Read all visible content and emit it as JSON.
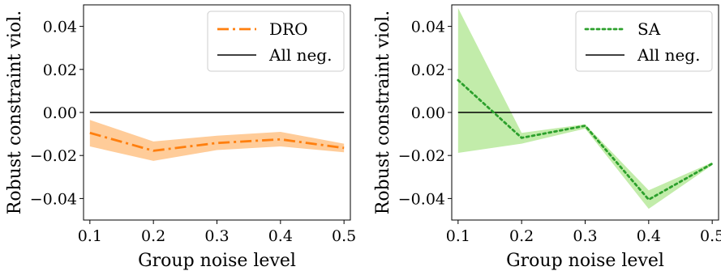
{
  "chart_data": [
    {
      "type": "line",
      "title": "",
      "xlabel": "Group noise level",
      "ylabel": "Robust constraint viol.",
      "x": [
        0.1,
        0.2,
        0.3,
        0.4,
        0.5
      ],
      "xlim": [
        0.09,
        0.51
      ],
      "ylim": [
        -0.05,
        0.05
      ],
      "xticks": [
        "0.1",
        "0.2",
        "0.3",
        "0.4",
        "0.5"
      ],
      "yticks": [
        "−0.04",
        "−0.02",
        "0.00",
        "0.02",
        "0.04"
      ],
      "ytick_values": [
        -0.04,
        -0.02,
        0.0,
        0.02,
        0.04
      ],
      "grid": false,
      "legend_position": "top-right",
      "series": [
        {
          "name": "DRO",
          "values": [
            -0.0095,
            -0.0178,
            -0.0142,
            -0.0125,
            -0.0165
          ],
          "band_lower": [
            -0.0158,
            -0.0225,
            -0.0175,
            -0.0158,
            -0.0185
          ],
          "band_upper": [
            -0.0035,
            -0.0135,
            -0.0108,
            -0.009,
            -0.0145
          ],
          "color": "#ff7f0e",
          "band_color": "#ffcc99",
          "style": "dash-dot"
        },
        {
          "name": "All neg.",
          "values": [
            0.0,
            0.0,
            0.0,
            0.0,
            0.0
          ],
          "color": "#000000",
          "style": "solid"
        }
      ]
    },
    {
      "type": "line",
      "title": "",
      "xlabel": "Group noise level",
      "ylabel": "Robust constraint viol.",
      "x": [
        0.1,
        0.2,
        0.3,
        0.4,
        0.5
      ],
      "xlim": [
        0.09,
        0.51
      ],
      "ylim": [
        -0.05,
        0.05
      ],
      "xticks": [
        "0.1",
        "0.2",
        "0.3",
        "0.4",
        "0.5"
      ],
      "yticks": [
        "−0.04",
        "−0.02",
        "0.00",
        "0.02",
        "0.04"
      ],
      "ytick_values": [
        -0.04,
        -0.02,
        0.0,
        0.02,
        0.04
      ],
      "grid": false,
      "legend_position": "top-right",
      "series": [
        {
          "name": "SA",
          "values": [
            0.015,
            -0.0118,
            -0.0062,
            -0.0405,
            -0.0238
          ],
          "band_lower": [
            -0.0188,
            -0.0145,
            -0.0075,
            -0.0448,
            -0.0245
          ],
          "band_upper": [
            0.0485,
            -0.0095,
            -0.0055,
            -0.0362,
            -0.0232
          ],
          "color": "#2ca02c",
          "band_color": "#c2ecaa",
          "style": "dotted"
        },
        {
          "name": "All neg.",
          "values": [
            0.0,
            0.0,
            0.0,
            0.0,
            0.0
          ],
          "color": "#000000",
          "style": "solid"
        }
      ]
    }
  ]
}
